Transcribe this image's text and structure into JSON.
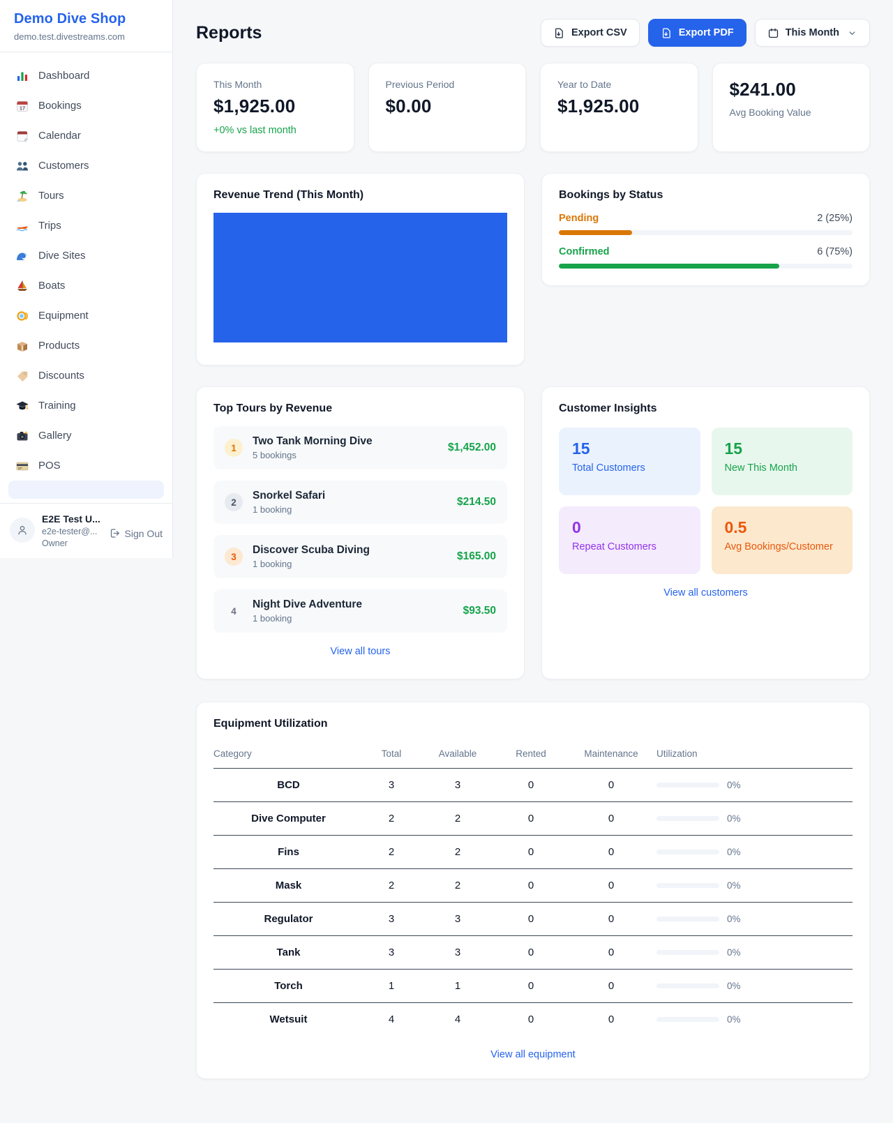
{
  "sidebar": {
    "brand": {
      "name": "Demo Dive Shop",
      "domain": "demo.test.divestreams.com"
    },
    "items": [
      {
        "icon": "bar-chart",
        "label": "Dashboard"
      },
      {
        "icon": "calendar-date",
        "label": "Bookings"
      },
      {
        "icon": "tear-off-calendar",
        "label": "Calendar"
      },
      {
        "icon": "people",
        "label": "Customers"
      },
      {
        "icon": "desert-island",
        "label": "Tours"
      },
      {
        "icon": "speedboat",
        "label": "Trips"
      },
      {
        "icon": "water-wave",
        "label": "Dive Sites"
      },
      {
        "icon": "sailboat",
        "label": "Boats"
      },
      {
        "icon": "diving-mask",
        "label": "Equipment"
      },
      {
        "icon": "package",
        "label": "Products"
      },
      {
        "icon": "price-tag",
        "label": "Discounts"
      },
      {
        "icon": "graduation-cap",
        "label": "Training"
      },
      {
        "icon": "camera",
        "label": "Gallery"
      },
      {
        "icon": "credit-card",
        "label": "POS"
      }
    ],
    "user": {
      "name": "E2E Test U...",
      "email": "e2e-tester@...",
      "role": "Owner",
      "sign_out_label": "Sign Out"
    }
  },
  "header": {
    "title": "Reports",
    "export_csv_label": "Export CSV",
    "export_pdf_label": "Export PDF",
    "period_label": "This Month"
  },
  "stats": [
    {
      "label": "This Month",
      "value": "$1,925.00",
      "delta": "+0% vs last month"
    },
    {
      "label": "Previous Period",
      "value": "$0.00"
    },
    {
      "label": "Year to Date",
      "value": "$1,925.00"
    },
    {
      "label": "Avg Booking Value",
      "value": "$241.00"
    }
  ],
  "revenue_trend": {
    "title": "Revenue Trend (This Month)"
  },
  "bookings_by_status": {
    "title": "Bookings by Status",
    "rows": [
      {
        "label": "Pending",
        "display": "2 (25%)",
        "count": 2,
        "percent": 25,
        "color": "#d97706"
      },
      {
        "label": "Confirmed",
        "display": "6 (75%)",
        "count": 6,
        "percent": 75,
        "color": "#16a34a"
      }
    ]
  },
  "top_tours": {
    "title": "Top Tours by Revenue",
    "view_all_label": "View all tours",
    "rows": [
      {
        "rank": "1",
        "name": "Two Tank Morning Dive",
        "bookings": "5 bookings",
        "revenue": "$1,452.00"
      },
      {
        "rank": "2",
        "name": "Snorkel Safari",
        "bookings": "1 booking",
        "revenue": "$214.50"
      },
      {
        "rank": "3",
        "name": "Discover Scuba Diving",
        "bookings": "1 booking",
        "revenue": "$165.00"
      },
      {
        "rank": "4",
        "name": "Night Dive Adventure",
        "bookings": "1 booking",
        "revenue": "$93.50"
      }
    ]
  },
  "customer_insights": {
    "title": "Customer Insights",
    "view_all_label": "View all customers",
    "tiles": [
      {
        "value": "15",
        "label": "Total Customers",
        "color": "#2563eb"
      },
      {
        "value": "15",
        "label": "New This Month",
        "color": "#16a34a"
      },
      {
        "value": "0",
        "label": "Repeat Customers",
        "color": "#9333ea"
      },
      {
        "value": "0.5",
        "label": "Avg Bookings/Customer",
        "color": "#ea580c"
      }
    ]
  },
  "equipment": {
    "title": "Equipment Utilization",
    "view_all_label": "View all equipment",
    "columns": [
      "Category",
      "Total",
      "Available",
      "Rented",
      "Maintenance",
      "Utilization"
    ],
    "rows": [
      {
        "category": "BCD",
        "total": "3",
        "available": "3",
        "rented": "0",
        "maintenance": "0",
        "utilization": "0%",
        "utilization_percent": 0
      },
      {
        "category": "Dive Computer",
        "total": "2",
        "available": "2",
        "rented": "0",
        "maintenance": "0",
        "utilization": "0%",
        "utilization_percent": 0
      },
      {
        "category": "Fins",
        "total": "2",
        "available": "2",
        "rented": "0",
        "maintenance": "0",
        "utilization": "0%",
        "utilization_percent": 0
      },
      {
        "category": "Mask",
        "total": "2",
        "available": "2",
        "rented": "0",
        "maintenance": "0",
        "utilization": "0%",
        "utilization_percent": 0
      },
      {
        "category": "Regulator",
        "total": "3",
        "available": "3",
        "rented": "0",
        "maintenance": "0",
        "utilization": "0%",
        "utilization_percent": 0
      },
      {
        "category": "Tank",
        "total": "3",
        "available": "3",
        "rented": "0",
        "maintenance": "0",
        "utilization": "0%",
        "utilization_percent": 0
      },
      {
        "category": "Torch",
        "total": "1",
        "available": "1",
        "rented": "0",
        "maintenance": "0",
        "utilization": "0%",
        "utilization_percent": 0
      },
      {
        "category": "Wetsuit",
        "total": "4",
        "available": "4",
        "rented": "0",
        "maintenance": "0",
        "utilization": "0%",
        "utilization_percent": 0
      }
    ]
  },
  "colors": {
    "accent_blue": "#2563eb",
    "success_green": "#16a34a",
    "pending_orange": "#d97706",
    "maintenance_orange": "#ea580c",
    "purple": "#9333ea",
    "chart_bar_blue": "#2563eb"
  }
}
